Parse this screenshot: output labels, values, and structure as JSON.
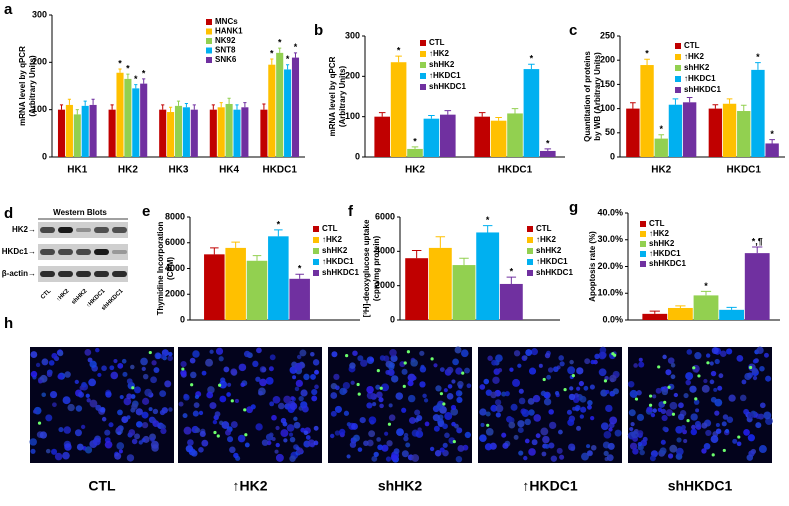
{
  "chart_data": [
    {
      "type": "bar",
      "panel": "a",
      "ylabel": [
        "mRNA level  by qPCR",
        "(Arbitrary Units)"
      ],
      "categories": [
        "HK1",
        "HK2",
        "HK3",
        "HK4",
        "HKDC1"
      ],
      "ylim": [
        0,
        300
      ],
      "yticks": [
        0,
        100,
        200,
        300
      ],
      "series": [
        {
          "name": "MNCs",
          "color": "#c00000",
          "values": [
            100,
            100,
            100,
            100,
            100
          ],
          "errors": [
            10,
            10,
            10,
            10,
            12
          ],
          "annotations": [
            null,
            null,
            null,
            null,
            null
          ]
        },
        {
          "name": "HANK1",
          "color": "#ffc000",
          "values": [
            110,
            178,
            95,
            105,
            195
          ],
          "errors": [
            12,
            8,
            10,
            10,
            12
          ],
          "annotations": [
            null,
            "*",
            null,
            null,
            "*"
          ]
        },
        {
          "name": "NK92",
          "color": "#92d050",
          "values": [
            90,
            165,
            108,
            112,
            220
          ],
          "errors": [
            10,
            10,
            10,
            12,
            10
          ],
          "annotations": [
            null,
            "*",
            null,
            null,
            "*"
          ]
        },
        {
          "name": "SNT8",
          "color": "#00b0f0",
          "values": [
            108,
            145,
            105,
            100,
            185
          ],
          "errors": [
            10,
            8,
            8,
            10,
            10
          ],
          "annotations": [
            null,
            "*",
            null,
            null,
            "*"
          ]
        },
        {
          "name": "SNK6",
          "color": "#7030a0",
          "values": [
            110,
            155,
            100,
            105,
            210
          ],
          "errors": [
            12,
            10,
            10,
            10,
            10
          ],
          "annotations": [
            null,
            "*",
            null,
            null,
            "*"
          ]
        }
      ]
    },
    {
      "type": "bar",
      "panel": "b",
      "ylabel": [
        "mRNA level  by qPCR",
        "(Arbitrary Units)"
      ],
      "categories": [
        "HK2",
        "HKDC1"
      ],
      "ylim": [
        0,
        300
      ],
      "yticks": [
        0,
        100,
        200,
        300
      ],
      "series": [
        {
          "name": "CTL",
          "color": "#c00000",
          "values": [
            100,
            100
          ],
          "errors": [
            10,
            10
          ],
          "annotations": [
            null,
            null
          ]
        },
        {
          "name": "↑HK2",
          "color": "#ffc000",
          "values": [
            235,
            90
          ],
          "errors": [
            15,
            8
          ],
          "annotations": [
            "*",
            null
          ]
        },
        {
          "name": "shHK2",
          "color": "#92d050",
          "values": [
            20,
            108
          ],
          "errors": [
            5,
            12
          ],
          "annotations": [
            "*",
            null
          ]
        },
        {
          "name": "↑HKDC1",
          "color": "#00b0f0",
          "values": [
            95,
            218
          ],
          "errors": [
            8,
            12
          ],
          "annotations": [
            null,
            "*"
          ]
        },
        {
          "name": "shHKDC1",
          "color": "#7030a0",
          "values": [
            105,
            15
          ],
          "errors": [
            10,
            5
          ],
          "annotations": [
            null,
            "*"
          ]
        }
      ]
    },
    {
      "type": "bar",
      "panel": "c",
      "ylabel": [
        "Quantitation of proteins",
        "by WB (Arbitrary Units)"
      ],
      "categories": [
        "HK2",
        "HKDC1"
      ],
      "ylim": [
        0,
        250
      ],
      "yticks": [
        0,
        50,
        100,
        150,
        200,
        250
      ],
      "series": [
        {
          "name": "CTL",
          "color": "#c00000",
          "values": [
            100,
            100
          ],
          "errors": [
            12,
            8
          ],
          "annotations": [
            null,
            null
          ]
        },
        {
          "name": "↑HK2",
          "color": "#ffc000",
          "values": [
            190,
            110
          ],
          "errors": [
            12,
            10
          ],
          "annotations": [
            "*",
            null
          ]
        },
        {
          "name": "shHK2",
          "color": "#92d050",
          "values": [
            38,
            95
          ],
          "errors": [
            8,
            12
          ],
          "annotations": [
            "*",
            null
          ]
        },
        {
          "name": "↑HKDC1",
          "color": "#00b0f0",
          "values": [
            108,
            180
          ],
          "errors": [
            12,
            15
          ],
          "annotations": [
            null,
            "*"
          ]
        },
        {
          "name": "shHKDC1",
          "color": "#7030a0",
          "values": [
            113,
            28
          ],
          "errors": [
            10,
            8
          ],
          "annotations": [
            null,
            "*"
          ]
        }
      ]
    },
    {
      "type": "bar",
      "panel": "e",
      "ylabel": [
        "Thymidine Incorporation",
        "(CPM)"
      ],
      "categories": [
        null
      ],
      "ylim": [
        0,
        8000
      ],
      "yticks": [
        0,
        2000,
        4000,
        6000,
        8000
      ],
      "series": [
        {
          "name": "CTL",
          "color": "#c00000",
          "values": [
            5100
          ],
          "errors": [
            500
          ],
          "annotations": [
            null
          ]
        },
        {
          "name": "↑HK2",
          "color": "#ffc000",
          "values": [
            5600
          ],
          "errors": [
            450
          ],
          "annotations": [
            null
          ]
        },
        {
          "name": "shHK2",
          "color": "#92d050",
          "values": [
            4600
          ],
          "errors": [
            400
          ],
          "annotations": [
            null
          ]
        },
        {
          "name": "↑HKDC1",
          "color": "#00b0f0",
          "values": [
            6500
          ],
          "errors": [
            500
          ],
          "annotations": [
            "*"
          ]
        },
        {
          "name": "shHKDC1",
          "color": "#7030a0",
          "values": [
            3200
          ],
          "errors": [
            350
          ],
          "annotations": [
            "*"
          ]
        }
      ]
    },
    {
      "type": "bar",
      "panel": "f",
      "ylabel": [
        "[³H]-deoxyglucose uptake",
        "(cpm/mg protein)"
      ],
      "categories": [
        null
      ],
      "ylim": [
        0,
        6000
      ],
      "yticks": [
        0,
        2000,
        4000,
        6000
      ],
      "series": [
        {
          "name": "CTL",
          "color": "#c00000",
          "values": [
            3600
          ],
          "errors": [
            450
          ],
          "annotations": [
            null
          ]
        },
        {
          "name": "↑HK2",
          "color": "#ffc000",
          "values": [
            4200
          ],
          "errors": [
            650
          ],
          "annotations": [
            null
          ]
        },
        {
          "name": "shHK2",
          "color": "#92d050",
          "values": [
            3200
          ],
          "errors": [
            400
          ],
          "annotations": [
            null
          ]
        },
        {
          "name": "↑HKDC1",
          "color": "#00b0f0",
          "values": [
            5100
          ],
          "errors": [
            400
          ],
          "annotations": [
            "*"
          ]
        },
        {
          "name": "shHKDC1",
          "color": "#7030a0",
          "values": [
            2100
          ],
          "errors": [
            400
          ],
          "annotations": [
            "*"
          ]
        }
      ]
    },
    {
      "type": "bar",
      "panel": "g",
      "ylabel": [
        "Apoptosis rate (%)"
      ],
      "categories": [
        null
      ],
      "ylim": [
        0,
        40
      ],
      "yticks": [
        {
          "value": 0,
          "label": "0.0%"
        },
        {
          "value": 10,
          "label": "10.0%"
        },
        {
          "value": 20,
          "label": "20.0%"
        },
        {
          "value": 30,
          "label": "30.0%"
        },
        {
          "value": 40,
          "label": "40.0%"
        }
      ],
      "series": [
        {
          "name": "CTL",
          "color": "#c00000",
          "values": [
            2.3
          ],
          "errors": [
            1.0
          ],
          "annotations": [
            null
          ]
        },
        {
          "name": "↑HK2",
          "color": "#ffc000",
          "values": [
            4.5
          ],
          "errors": [
            0.8
          ],
          "annotations": [
            null
          ]
        },
        {
          "name": "shHK2",
          "color": "#92d050",
          "values": [
            9.2
          ],
          "errors": [
            1.5
          ],
          "annotations": [
            "*"
          ]
        },
        {
          "name": "↑HKDC1",
          "color": "#00b0f0",
          "values": [
            3.8
          ],
          "errors": [
            0.9
          ],
          "annotations": [
            null
          ]
        },
        {
          "name": "shHKDC1",
          "color": "#7030a0",
          "values": [
            25
          ],
          "errors": [
            2.3
          ],
          "annotations": [
            "*,¶"
          ]
        }
      ]
    }
  ],
  "western_blot": {
    "panel": "d",
    "title": "Western Blots",
    "row_labels": [
      "HK2→",
      "HKDc1→",
      "β-actin→"
    ],
    "lanes": [
      "CTL",
      "↑HK2",
      "shHK2",
      "↑HKDC1",
      "shHKDC1"
    ]
  },
  "images": {
    "panel": "h",
    "labels": [
      "CTL",
      "↑HK2",
      "shHK2",
      "↑HKDC1",
      "shHKDC1"
    ]
  }
}
